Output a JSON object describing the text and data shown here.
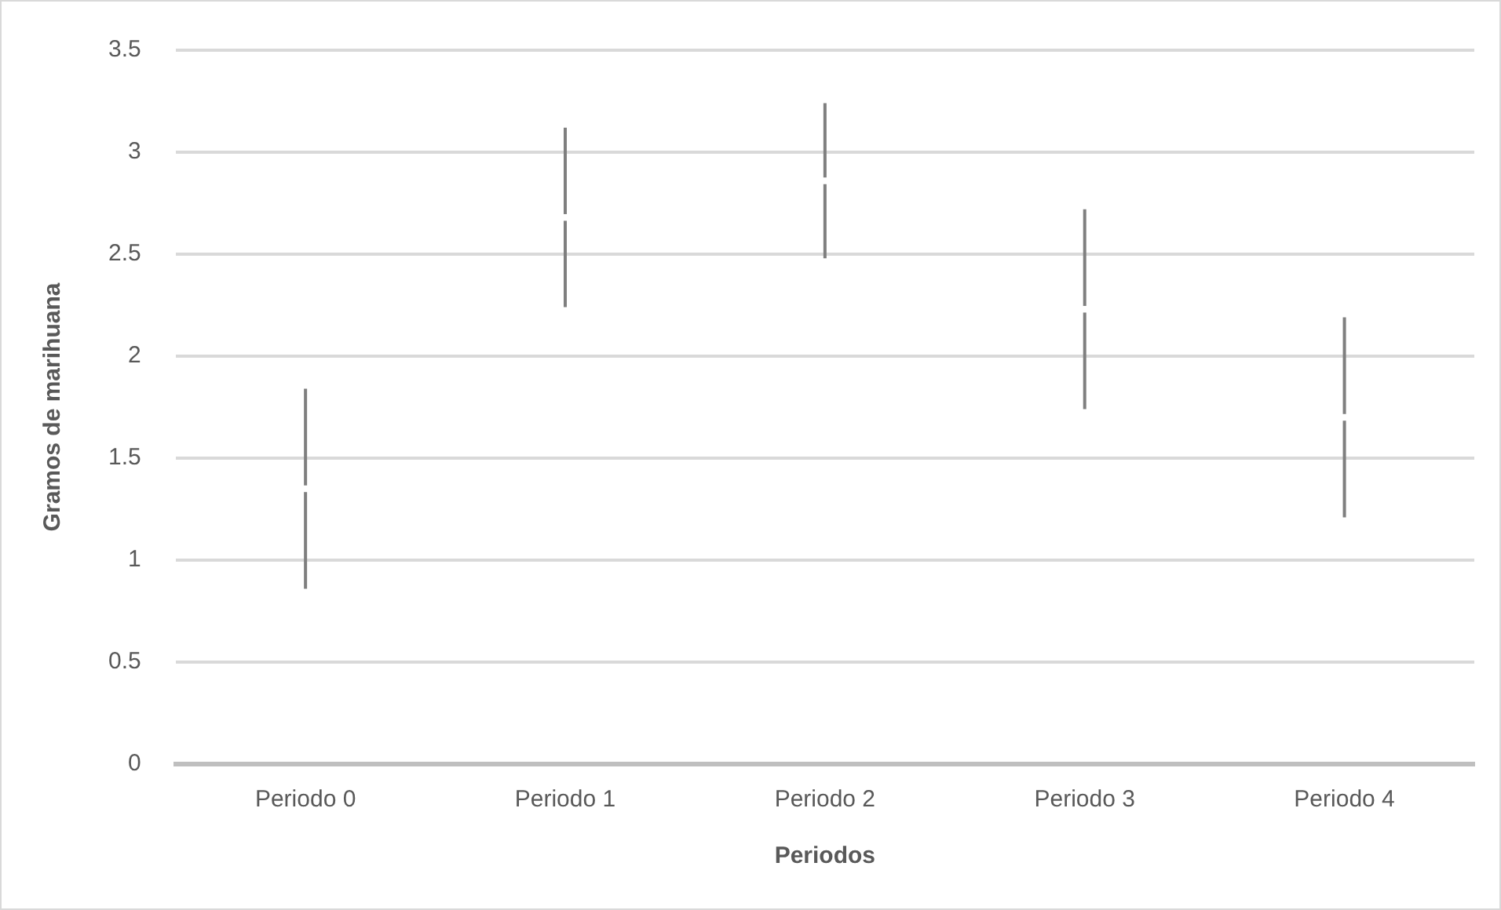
{
  "chart_data": {
    "type": "scatter",
    "xlabel": "Periodos",
    "ylabel": "Gramos de marihuana",
    "categories": [
      "Periodo 0",
      "Periodo 1",
      "Periodo 2",
      "Periodo 3",
      "Periodo 4"
    ],
    "series": [
      {
        "color": "#ffffff",
        "values": [
          1.35,
          2.68,
          2.86,
          2.23,
          1.7
        ],
        "errors": [
          0.49,
          0.44,
          0.38,
          0.49,
          0.49
        ]
      }
    ],
    "ylim": [
      0,
      3.5
    ],
    "yticks": [
      0,
      0.5,
      1,
      1.5,
      2,
      2.5,
      3,
      3.5
    ],
    "grid": "y",
    "marker": "square",
    "legend": false
  }
}
